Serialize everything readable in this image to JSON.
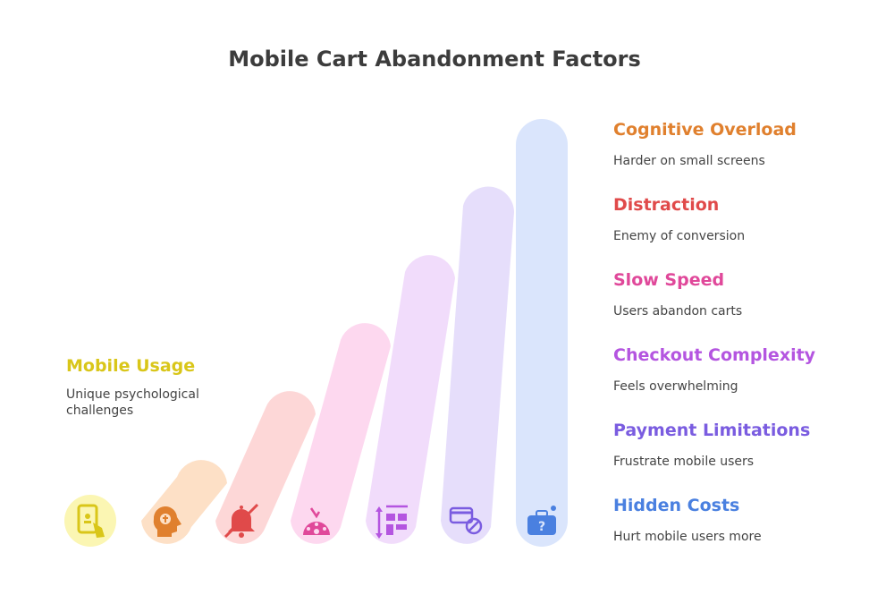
{
  "title": "Mobile Cart Abandonment Factors",
  "left_item": {
    "heading": "Mobile Usage",
    "description": "Unique psychological challenges",
    "color": "#d9c619",
    "icon": "phone-touch-icon"
  },
  "factors": [
    {
      "heading": "Cognitive Overload",
      "description": "Harder on small screens",
      "color": "#e0802e",
      "icon": "head-brain-icon"
    },
    {
      "heading": "Distraction",
      "description": "Enemy of conversion",
      "color": "#e04a4a",
      "icon": "bell-off-icon"
    },
    {
      "heading": "Slow Speed",
      "description": "Users abandon carts",
      "color": "#e0489a",
      "icon": "speedometer-icon"
    },
    {
      "heading": "Checkout Complexity",
      "description": "Feels overwhelming",
      "color": "#b455e0",
      "icon": "complex-form-icon"
    },
    {
      "heading": "Payment Limitations",
      "description": "Frustrate mobile users",
      "color": "#7a5ce0",
      "icon": "card-blocked-icon"
    },
    {
      "heading": "Hidden Costs",
      "description": "Hurt mobile users more",
      "color": "#4a80e0",
      "icon": "surprise-box-icon"
    }
  ],
  "bar_colors": {
    "circle_yellow": "#fbf6b3",
    "orange": "#fde0c6",
    "red": "#fdd7d7",
    "pink": "#fdd8ef",
    "purple": "#f1dcfb",
    "violet": "#e6defb",
    "blue": "#dae5fc"
  }
}
